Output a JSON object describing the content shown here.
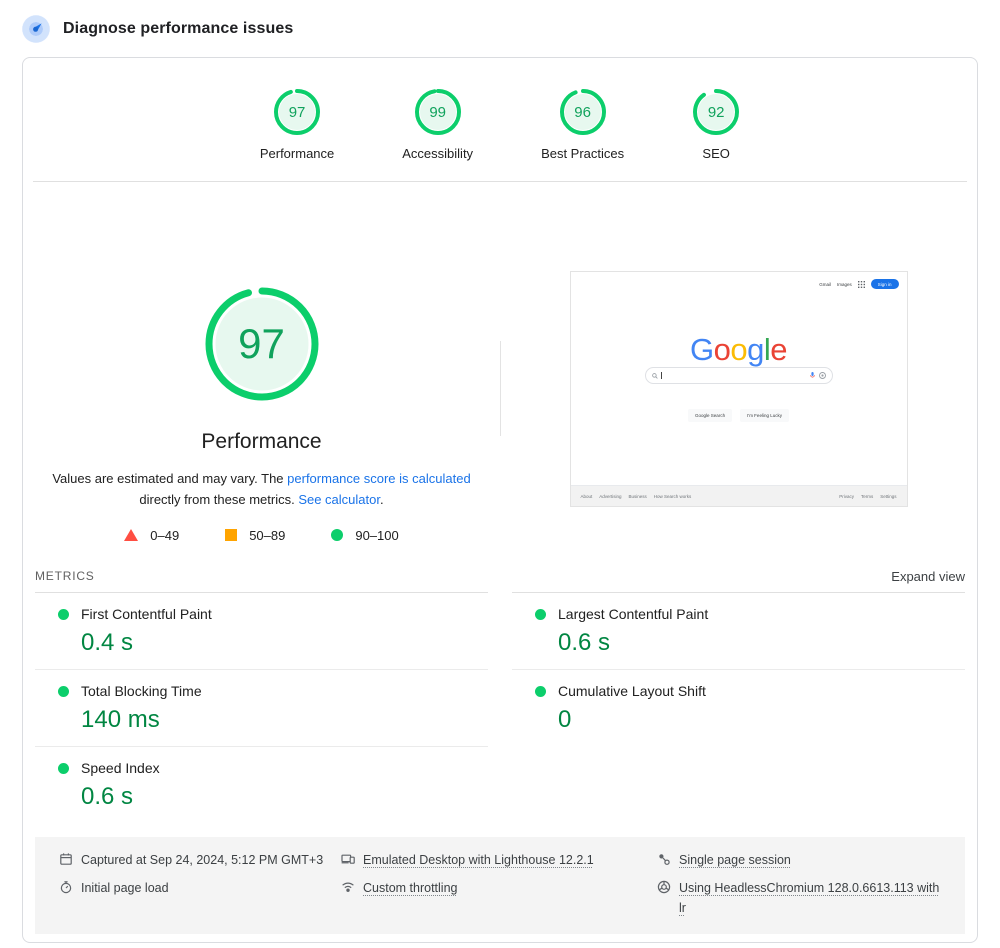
{
  "header": {
    "title": "Diagnose performance issues"
  },
  "summary": {
    "categories": [
      {
        "label": "Performance",
        "score": 97
      },
      {
        "label": "Accessibility",
        "score": 99
      },
      {
        "label": "Best Practices",
        "score": 96
      },
      {
        "label": "SEO",
        "score": 92
      }
    ]
  },
  "gauge": {
    "score": 97,
    "title": "Performance"
  },
  "description": {
    "text_before": "Values are estimated and may vary. The ",
    "link1": "performance score is calculated",
    "text_middle": " directly from these metrics. ",
    "link2": "See calculator",
    "text_after": "."
  },
  "legend": [
    {
      "range": "0–49",
      "shape": "triangle",
      "color": "#ff4e42"
    },
    {
      "range": "50–89",
      "shape": "square",
      "color": "#ffa400"
    },
    {
      "range": "90–100",
      "shape": "circle",
      "color": "#0cce6b"
    }
  ],
  "metrics_section": {
    "heading": "METRICS",
    "expand_label": "Expand view"
  },
  "metrics": {
    "left": [
      {
        "name": "First Contentful Paint",
        "value": "0.4 s"
      },
      {
        "name": "Total Blocking Time",
        "value": "140 ms"
      },
      {
        "name": "Speed Index",
        "value": "0.6 s"
      }
    ],
    "right": [
      {
        "name": "Largest Contentful Paint",
        "value": "0.6 s"
      },
      {
        "name": "Cumulative Layout Shift",
        "value": "0"
      }
    ]
  },
  "thumbnail": {
    "topbar": {
      "gmail": "Gmail",
      "images": "Images",
      "sign_in": "Sign in"
    },
    "logo_letters": [
      {
        "ch": "G",
        "color": "#4285f4"
      },
      {
        "ch": "o",
        "color": "#ea4335"
      },
      {
        "ch": "o",
        "color": "#fbbc05"
      },
      {
        "ch": "g",
        "color": "#4285f4"
      },
      {
        "ch": "l",
        "color": "#34a853"
      },
      {
        "ch": "e",
        "color": "#ea4335"
      }
    ],
    "buttons": {
      "search": "Google Search",
      "lucky": "I'm Feeling Lucky"
    },
    "footer_left": [
      "About",
      "Advertising",
      "Business",
      "How Search works"
    ],
    "footer_right": [
      "Privacy",
      "Terms",
      "Settings"
    ]
  },
  "footer": {
    "captured": "Captured at Sep 24, 2024, 5:12 PM GMT+3",
    "page_load": "Initial page load",
    "environment": "Emulated Desktop with Lighthouse 12.2.1",
    "throttling": "Custom throttling",
    "session": "Single page session",
    "browser": "Using HeadlessChromium 128.0.6613.113 with lr"
  },
  "colors": {
    "pass_green": "#0cce6b",
    "value_green": "#018642",
    "average_orange": "#ffa400",
    "fail_red": "#ff4e42",
    "link_blue": "#1a73e8"
  }
}
